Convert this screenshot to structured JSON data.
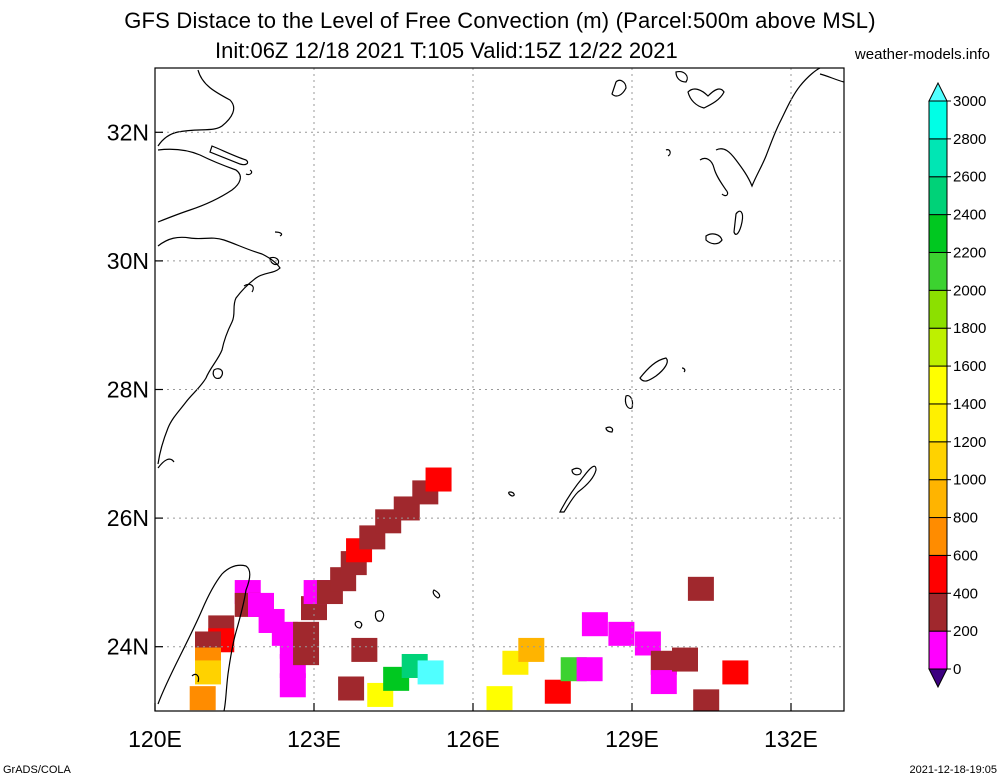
{
  "title": "GFS Distace to the Level of Free Convection (m) (Parcel:500m above MSL)",
  "subtitle": "Init:06Z 12/18 2021 T:105 Valid:15Z 12/22 2021",
  "site": "weather-models.info",
  "footer_left": "GrADS/COLA",
  "footer_right": "2021-12-18-19:05",
  "map": {
    "lon_range": [
      120,
      133
    ],
    "lat_range": [
      23,
      33
    ],
    "lon_ticks": [
      {
        "value": 120,
        "label": "120E"
      },
      {
        "value": 123,
        "label": "123E"
      },
      {
        "value": 126,
        "label": "126E"
      },
      {
        "value": 129,
        "label": "129E"
      },
      {
        "value": 132,
        "label": "132E"
      }
    ],
    "lat_ticks": [
      {
        "value": 24,
        "label": "24N"
      },
      {
        "value": 26,
        "label": "26N"
      },
      {
        "value": 28,
        "label": "28N"
      },
      {
        "value": 30,
        "label": "30N"
      },
      {
        "value": 32,
        "label": "32N"
      }
    ],
    "grid": true
  },
  "colorbar": {
    "labels": [
      "0",
      "200",
      "400",
      "600",
      "800",
      "1000",
      "1200",
      "1400",
      "1600",
      "1800",
      "2000",
      "2200",
      "2400",
      "2600",
      "2800",
      "3000"
    ],
    "colors": [
      "#3c0080",
      "#ff00ff",
      "#a0282d",
      "#ff0000",
      "#ff8c00",
      "#ffb400",
      "#ffd200",
      "#fff000",
      "#ffff00",
      "#bef000",
      "#8ce000",
      "#3cd230",
      "#00c820",
      "#00d278",
      "#00e6b4",
      "#00ffe6",
      "#50ffff"
    ]
  },
  "field_cells": [
    {
      "lon": 121.75,
      "lat": 24.85,
      "v": 0
    },
    {
      "lon": 121.75,
      "lat": 24.65,
      "v": 200
    },
    {
      "lon": 121.25,
      "lat": 24.3,
      "v": 200
    },
    {
      "lon": 121.25,
      "lat": 24.1,
      "v": 400
    },
    {
      "lon": 121.0,
      "lat": 24.05,
      "v": 200
    },
    {
      "lon": 121.0,
      "lat": 23.8,
      "v": 600
    },
    {
      "lon": 121.0,
      "lat": 23.6,
      "v": 1000
    },
    {
      "lon": 120.9,
      "lat": 23.2,
      "v": 600
    },
    {
      "lon": 122.0,
      "lat": 24.65,
      "v": 0
    },
    {
      "lon": 122.2,
      "lat": 24.4,
      "v": 0
    },
    {
      "lon": 122.45,
      "lat": 24.2,
      "v": 0
    },
    {
      "lon": 122.6,
      "lat": 24.0,
      "v": 0
    },
    {
      "lon": 122.6,
      "lat": 23.7,
      "v": 0
    },
    {
      "lon": 122.6,
      "lat": 23.4,
      "v": 0
    },
    {
      "lon": 122.85,
      "lat": 24.2,
      "v": 200
    },
    {
      "lon": 122.85,
      "lat": 23.9,
      "v": 200
    },
    {
      "lon": 123.0,
      "lat": 24.6,
      "v": 200
    },
    {
      "lon": 123.05,
      "lat": 24.85,
      "v": 0
    },
    {
      "lon": 123.3,
      "lat": 24.85,
      "v": 200
    },
    {
      "lon": 123.55,
      "lat": 25.05,
      "v": 200
    },
    {
      "lon": 123.75,
      "lat": 25.3,
      "v": 200
    },
    {
      "lon": 123.85,
      "lat": 25.5,
      "v": 400
    },
    {
      "lon": 124.1,
      "lat": 25.7,
      "v": 200
    },
    {
      "lon": 124.4,
      "lat": 25.95,
      "v": 200
    },
    {
      "lon": 124.75,
      "lat": 26.15,
      "v": 200
    },
    {
      "lon": 125.1,
      "lat": 26.4,
      "v": 200
    },
    {
      "lon": 125.35,
      "lat": 26.6,
      "v": 400
    },
    {
      "lon": 123.95,
      "lat": 23.95,
      "v": 200
    },
    {
      "lon": 123.7,
      "lat": 23.35,
      "v": 200
    },
    {
      "lon": 124.25,
      "lat": 23.25,
      "v": 1400
    },
    {
      "lon": 124.55,
      "lat": 23.5,
      "v": 2200
    },
    {
      "lon": 124.9,
      "lat": 23.7,
      "v": 2400
    },
    {
      "lon": 125.2,
      "lat": 23.6,
      "v": 3000
    },
    {
      "lon": 126.5,
      "lat": 23.2,
      "v": 1400
    },
    {
      "lon": 126.8,
      "lat": 23.75,
      "v": 1200
    },
    {
      "lon": 127.1,
      "lat": 23.95,
      "v": 800
    },
    {
      "lon": 127.6,
      "lat": 23.3,
      "v": 400
    },
    {
      "lon": 127.9,
      "lat": 23.65,
      "v": 2000
    },
    {
      "lon": 128.2,
      "lat": 23.65,
      "v": 0
    },
    {
      "lon": 128.3,
      "lat": 24.35,
      "v": 0
    },
    {
      "lon": 128.8,
      "lat": 24.2,
      "v": 0
    },
    {
      "lon": 129.3,
      "lat": 24.05,
      "v": 0
    },
    {
      "lon": 129.6,
      "lat": 23.75,
      "v": 200
    },
    {
      "lon": 129.6,
      "lat": 23.45,
      "v": 0
    },
    {
      "lon": 130.0,
      "lat": 23.8,
      "v": 200
    },
    {
      "lon": 130.4,
      "lat": 23.15,
      "v": 200
    },
    {
      "lon": 130.95,
      "lat": 23.6,
      "v": 400
    },
    {
      "lon": 130.3,
      "lat": 24.9,
      "v": 200
    }
  ]
}
